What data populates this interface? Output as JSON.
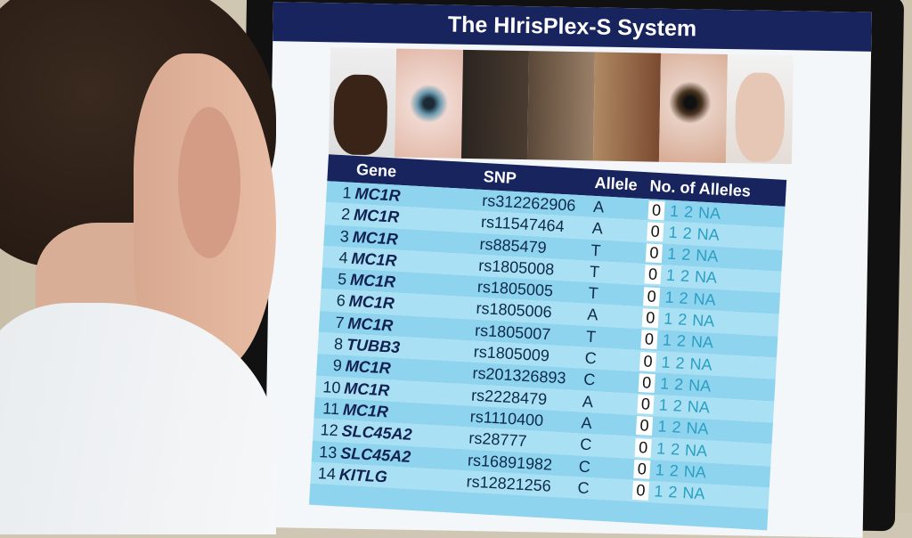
{
  "screen": {
    "title": "The HIrisPlex-S System",
    "columns": [
      "Gene",
      "SNP",
      "Allele",
      "No. of Alleles"
    ],
    "allele_options": [
      "0",
      "1",
      "2",
      "NA"
    ],
    "rows": [
      {
        "n": "1",
        "gene": "MC1R",
        "snp": "rs312262906",
        "allele": "A"
      },
      {
        "n": "2",
        "gene": "MC1R",
        "snp": "rs11547464",
        "allele": "A"
      },
      {
        "n": "3",
        "gene": "MC1R",
        "snp": "rs885479",
        "allele": "T"
      },
      {
        "n": "4",
        "gene": "MC1R",
        "snp": "rs1805008",
        "allele": "T"
      },
      {
        "n": "5",
        "gene": "MC1R",
        "snp": "rs1805005",
        "allele": "T"
      },
      {
        "n": "6",
        "gene": "MC1R",
        "snp": "rs1805006",
        "allele": "A"
      },
      {
        "n": "7",
        "gene": "MC1R",
        "snp": "rs1805007",
        "allele": "T"
      },
      {
        "n": "8",
        "gene": "TUBB3",
        "snp": "rs1805009",
        "allele": "C"
      },
      {
        "n": "9",
        "gene": "MC1R",
        "snp": "rs201326893",
        "allele": "C"
      },
      {
        "n": "10",
        "gene": "MC1R",
        "snp": "rs2228479",
        "allele": "A"
      },
      {
        "n": "11",
        "gene": "MC1R",
        "snp": "rs1110400",
        "allele": "A"
      },
      {
        "n": "12",
        "gene": "SLC45A2",
        "snp": "rs28777",
        "allele": "C"
      },
      {
        "n": "13",
        "gene": "SLC45A2",
        "snp": "rs16891982",
        "allele": "C"
      },
      {
        "n": "14",
        "gene": "KITLG",
        "snp": "rs12821256",
        "allele": "C"
      }
    ],
    "colors": {
      "header": "#17245e",
      "row_a": "#8fd4ee",
      "row_b": "#a9e0f3",
      "option": "#2a9fc4"
    }
  }
}
